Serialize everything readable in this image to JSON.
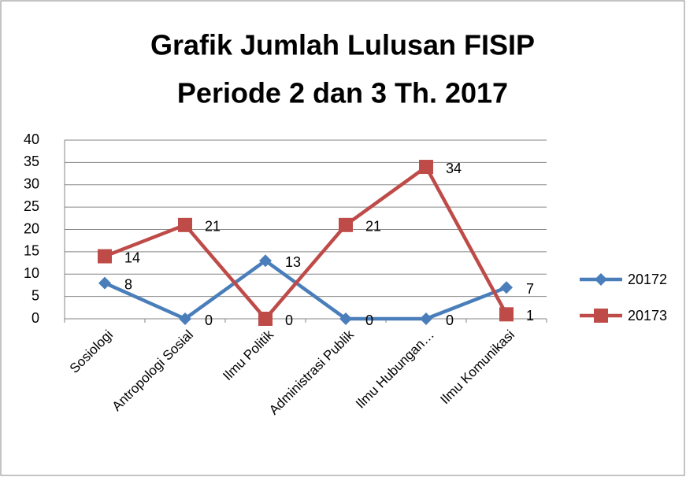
{
  "chart_data": {
    "type": "line",
    "title": [
      "Grafik Jumlah Lulusan FISIP",
      "Periode 2 dan 3 Th. 2017"
    ],
    "categories": [
      "Sosiologi",
      "Antropologi Sosial",
      "Ilmu Politik",
      "Administrasi Publik",
      "Ilmu Hubungan…",
      "Ilmu Komunikasi"
    ],
    "series": [
      {
        "name": "20172",
        "color": "#4a7ebb",
        "marker": "diamond",
        "values": [
          8,
          0,
          13,
          0,
          0,
          7
        ]
      },
      {
        "name": "20173",
        "color": "#be4b48",
        "marker": "square",
        "values": [
          14,
          21,
          0,
          21,
          34,
          1
        ]
      }
    ],
    "ylim": [
      0,
      40
    ],
    "yticks": [
      0,
      5,
      10,
      15,
      20,
      25,
      30,
      35,
      40
    ],
    "grid": true,
    "legend": "right"
  }
}
